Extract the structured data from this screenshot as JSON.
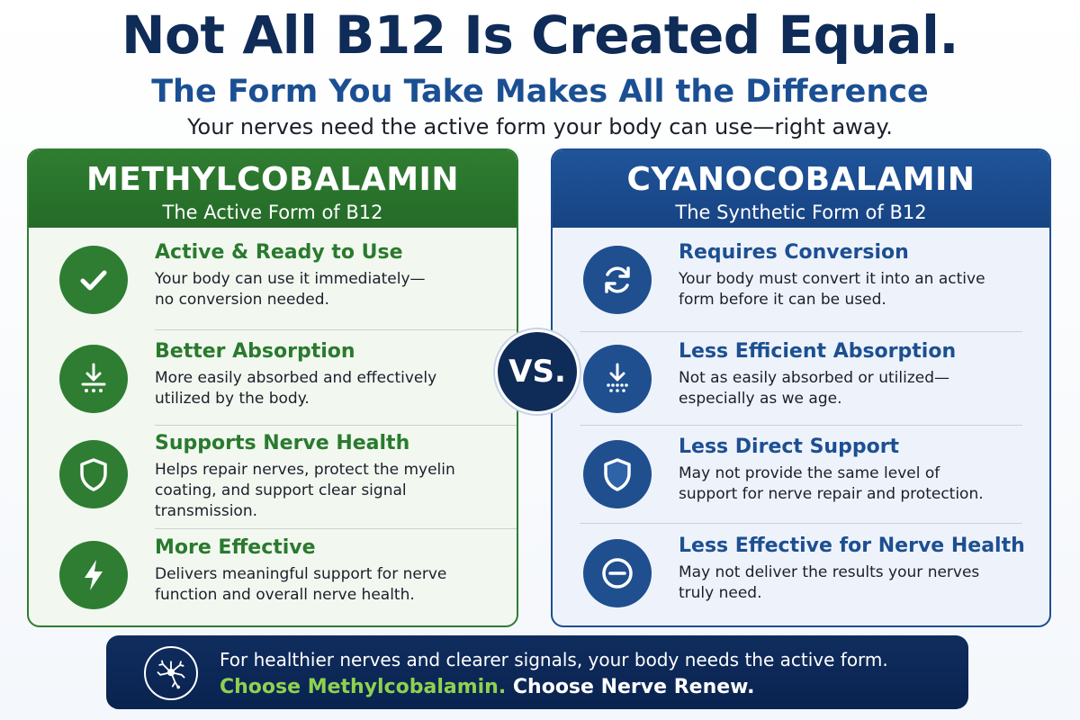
{
  "header": {
    "title": "Not All B12 Is Created Equal.",
    "subtitle": "The Form You Take Makes All the Difference",
    "tagline": "Your nerves need the active form your body can use—right away."
  },
  "left": {
    "name": "METHYLCOBALAMIN",
    "form": "The Active Form of B12",
    "items": [
      {
        "icon": "check-icon",
        "title": "Active & Ready to Use",
        "lines": [
          "Your body can use it immediately—",
          "no conversion needed."
        ]
      },
      {
        "icon": "absorption-icon",
        "title": "Better Absorption",
        "lines": [
          "More easily absorbed and effectively",
          "utilized by the body."
        ]
      },
      {
        "icon": "shield-icon",
        "title": "Supports Nerve Health",
        "lines": [
          "Helps repair nerves, protect the myelin",
          "coating, and support clear signal",
          "transmission."
        ]
      },
      {
        "icon": "lightning-icon",
        "title": "More Effective",
        "lines": [
          "Delivers meaningful support for nerve",
          "function and overall nerve health."
        ]
      }
    ]
  },
  "right": {
    "name": "CYANOCOBALAMIN",
    "form": "The Synthetic Form of B12",
    "items": [
      {
        "icon": "refresh-icon",
        "title": "Requires Conversion",
        "lines": [
          "Your body must convert it into an active",
          "form before it can be used."
        ]
      },
      {
        "icon": "absorption-icon",
        "title": "Less Efficient Absorption",
        "lines": [
          "Not as easily absorbed or utilized—",
          "especially as we age."
        ]
      },
      {
        "icon": "shield-icon",
        "title": "Less Direct Support",
        "lines": [
          "May not provide the same level of",
          "support for nerve repair and protection."
        ]
      },
      {
        "icon": "minus-circle-icon",
        "title": "Less Effective for Nerve Health",
        "lines": [
          "May not deliver the results your nerves",
          "truly need."
        ]
      }
    ]
  },
  "vs": "VS.",
  "banner": {
    "icon": "neuron-icon",
    "line1": "For healthier nerves and clearer signals, your body needs the active form.",
    "cta_green": "Choose Methylcobalamin.",
    "cta_white": "Choose Nerve Renew."
  },
  "colors": {
    "navy": "#0f2b57",
    "green": "#2e7d32",
    "blue": "#1d4f91",
    "accent_green": "#8fd14f"
  }
}
